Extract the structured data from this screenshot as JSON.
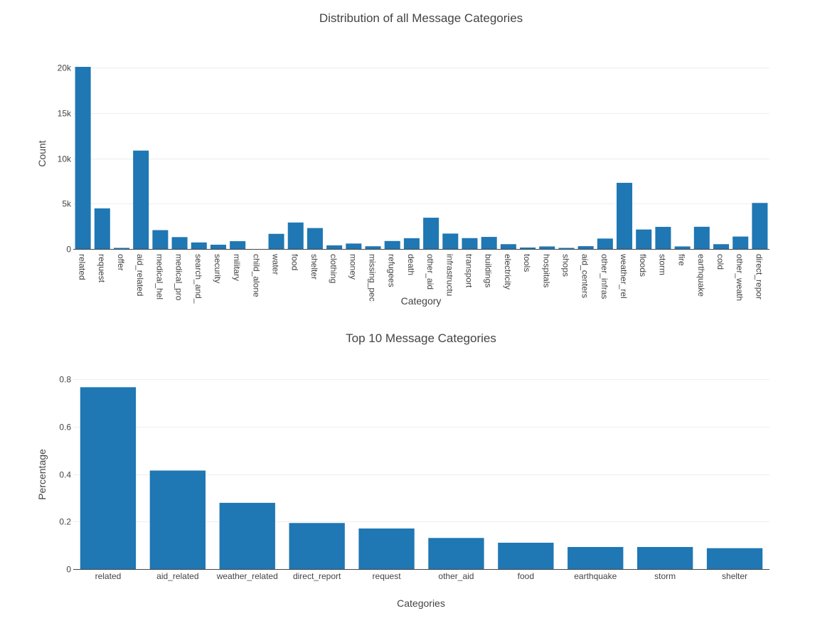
{
  "chart_data": [
    {
      "type": "bar",
      "title": "Distribution of all Message Categories",
      "xlabel": "Category",
      "ylabel": "Count",
      "ylim": [
        0,
        20100
      ],
      "yticks": [
        0,
        5000,
        10000,
        15000,
        20000
      ],
      "ytick_labels": [
        "0",
        "5k",
        "10k",
        "15k",
        "20k"
      ],
      "grid": true,
      "categories": [
        "related",
        "request",
        "offer",
        "aid_related",
        "medical_hel",
        "medical_pro",
        "search_and_",
        "security",
        "military",
        "child_alone",
        "water",
        "food",
        "shelter",
        "clothing",
        "money",
        "missing_pec",
        "refugees",
        "death",
        "other_aid",
        "infrastructu",
        "transport",
        "buildings",
        "electricity",
        "tools",
        "hospitals",
        "shops",
        "aid_centers",
        "other_infras",
        "weather_rel",
        "floods",
        "storm",
        "fire",
        "earthquake",
        "cold",
        "other_weath",
        "direct_repor"
      ],
      "values": [
        20100,
        4480,
        120,
        10860,
        2080,
        1310,
        720,
        470,
        860,
        0,
        1670,
        2920,
        2310,
        400,
        600,
        300,
        880,
        1190,
        3450,
        1700,
        1200,
        1330,
        530,
        160,
        280,
        120,
        310,
        1150,
        7300,
        2150,
        2440,
        280,
        2450,
        530,
        1370,
        5080
      ],
      "color": "#1f77b4"
    },
    {
      "type": "bar",
      "title": "Top 10 Message Categories",
      "xlabel": "Categories",
      "ylabel": "Percentage",
      "ylim": [
        0,
        0.8
      ],
      "yticks": [
        0,
        0.2,
        0.4,
        0.6,
        0.8
      ],
      "ytick_labels": [
        "0",
        "0.2",
        "0.4",
        "0.6",
        "0.8"
      ],
      "grid": true,
      "categories": [
        "related",
        "aid_related",
        "weather_related",
        "direct_report",
        "request",
        "other_aid",
        "food",
        "earthquake",
        "storm",
        "shelter"
      ],
      "values": [
        0.766,
        0.415,
        0.279,
        0.194,
        0.171,
        0.131,
        0.111,
        0.093,
        0.093,
        0.088
      ],
      "color": "#1f77b4"
    }
  ]
}
